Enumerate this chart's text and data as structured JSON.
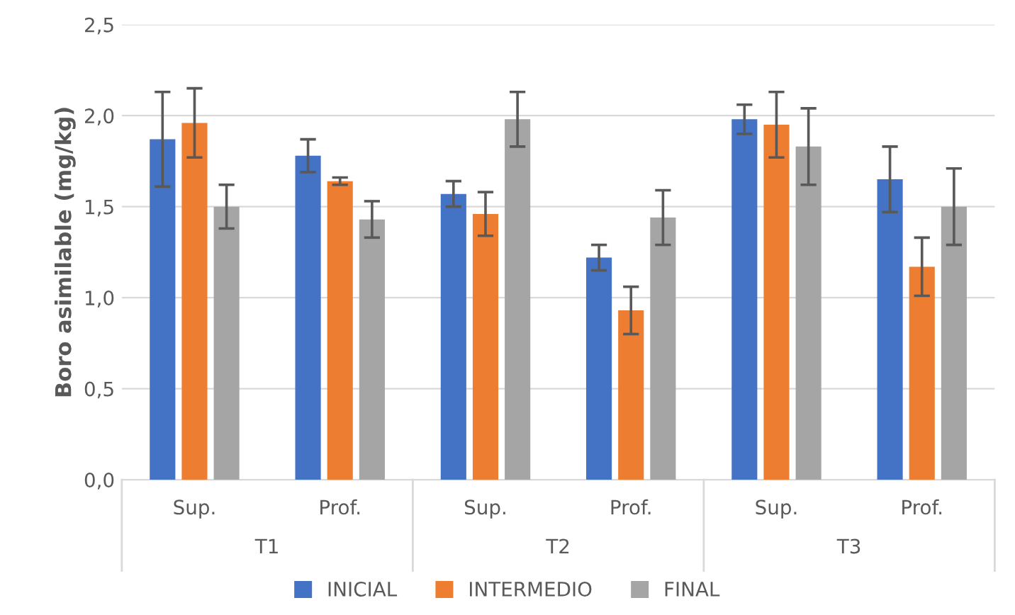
{
  "chart_data": {
    "type": "bar",
    "ylabel": "Boro asimilable (mg/kg)",
    "categories": [
      "Sup.",
      "Prof.",
      "Sup.",
      "Prof.",
      "Sup.",
      "Prof."
    ],
    "annotations": [
      "T1",
      "T2",
      "T3"
    ],
    "series": [
      {
        "name": "INICIAL",
        "color": "#4472c4",
        "values": [
          1.87,
          1.78,
          1.57,
          1.22,
          1.98,
          1.65
        ],
        "errors": [
          0.26,
          0.09,
          0.07,
          0.07,
          0.08,
          0.18
        ]
      },
      {
        "name": "INTERMEDIO",
        "color": "#ed7d31",
        "values": [
          1.96,
          1.64,
          1.46,
          0.93,
          1.95,
          1.17
        ],
        "errors": [
          0.19,
          0.02,
          0.12,
          0.13,
          0.18,
          0.16
        ]
      },
      {
        "name": "FINAL",
        "color": "#a5a5a5",
        "values": [
          1.5,
          1.43,
          1.98,
          1.44,
          1.83,
          1.5
        ],
        "errors": [
          0.12,
          0.1,
          0.15,
          0.15,
          0.21,
          0.21
        ]
      }
    ],
    "ylim": [
      0,
      2.5
    ],
    "yticks": [
      {
        "value": 0,
        "label": "0,0"
      },
      {
        "value": 0.5,
        "label": "0,5"
      },
      {
        "value": 1.0,
        "label": "1,0"
      },
      {
        "value": 1.5,
        "label": "1,5"
      },
      {
        "value": 2.0,
        "label": "2,0"
      },
      {
        "value": 2.5,
        "label": "2,5"
      }
    ],
    "grid": "y",
    "legend": "bottom"
  }
}
